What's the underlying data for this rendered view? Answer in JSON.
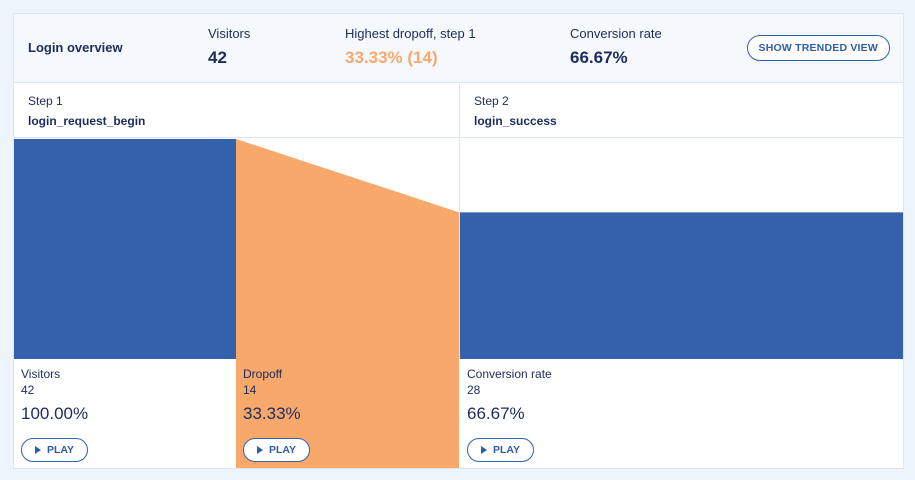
{
  "header": {
    "title": "Login overview",
    "visitors_label": "Visitors",
    "visitors_value": "42",
    "dropoff_label": "Highest dropoff, step 1",
    "dropoff_value": "33.33% (14)",
    "conversion_label": "Conversion rate",
    "conversion_value": "66.67%",
    "trend_button": "SHOW TRENDED VIEW"
  },
  "steps": [
    {
      "num": "Step 1",
      "name": "login_request_begin"
    },
    {
      "num": "Step 2",
      "name": "login_success"
    }
  ],
  "stats": [
    {
      "label": "Visitors",
      "count": "42",
      "pct": "100.00%",
      "play": "PLAY"
    },
    {
      "label": "Dropoff",
      "count": "14",
      "pct": "33.33%",
      "play": "PLAY"
    },
    {
      "label": "Conversion rate",
      "count": "28",
      "pct": "66.67%",
      "play": "PLAY"
    }
  ],
  "colors": {
    "blue": "#3461ab",
    "orange": "#f9a86c",
    "text": "#1d2c5b"
  },
  "chart_data": {
    "type": "bar",
    "categories": [
      "login_request_begin",
      "login_success"
    ],
    "values": [
      42,
      28
    ],
    "dropoff": 14,
    "ylim": [
      0,
      42
    ]
  }
}
